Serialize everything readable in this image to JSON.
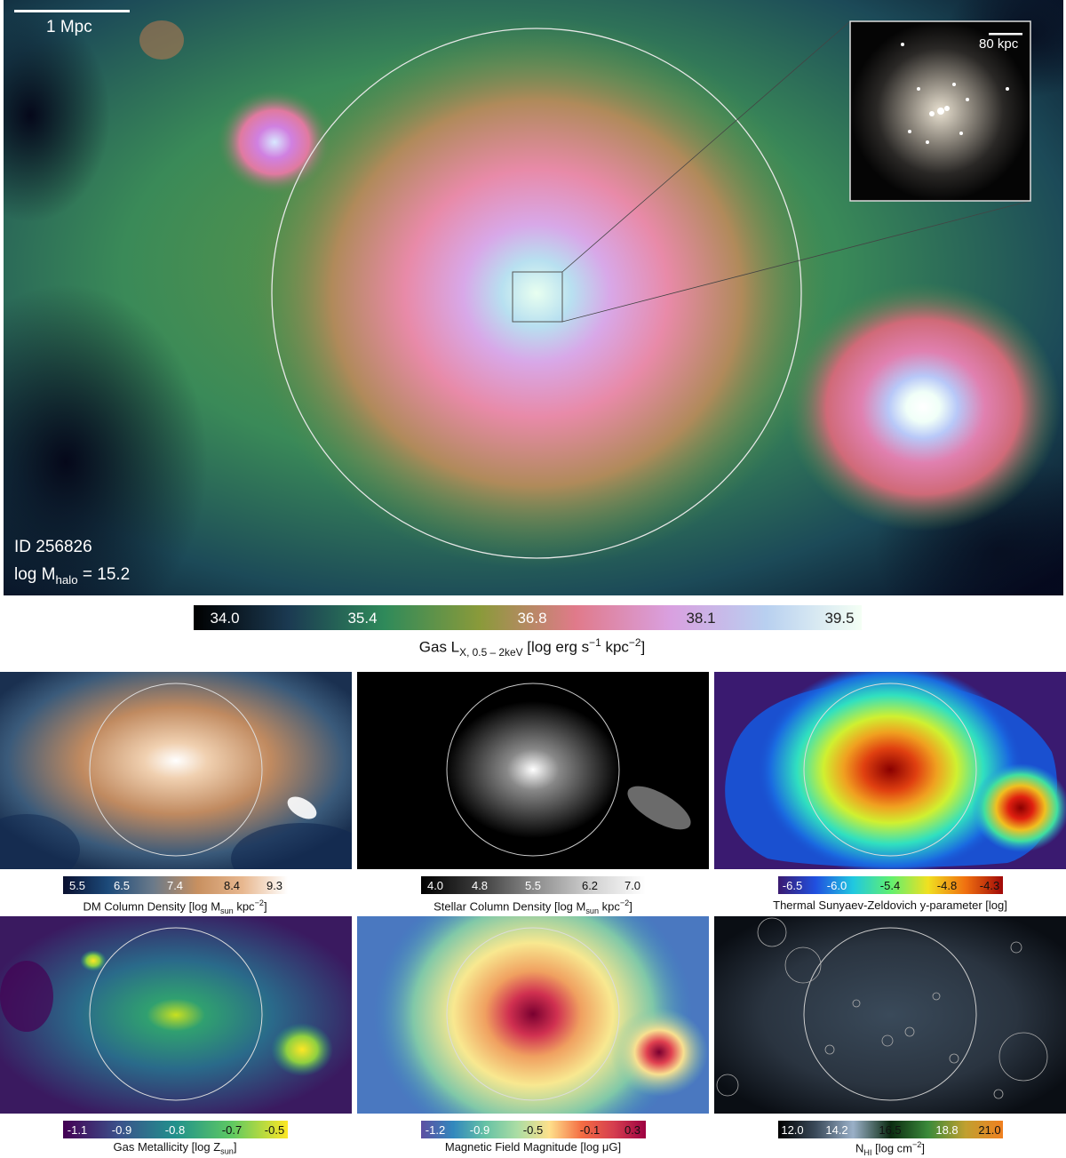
{
  "main_panel": {
    "scale_label": "1 Mpc",
    "inset_scale_label": "80 kpc",
    "id_label": "ID 256826",
    "mass_label_prefix": "log M",
    "mass_label_sub": "halo",
    "mass_label_suffix": " = 15.2"
  },
  "main_colorbar": {
    "ticks": [
      "34.0",
      "35.4",
      "36.8",
      "38.1",
      "39.5"
    ],
    "title_prefix": "Gas L",
    "title_sub": "X, 0.5 – 2keV",
    "title_mid": " [log erg s",
    "title_sup1": "−1",
    "title_mid2": " kpc",
    "title_sup2": "−2",
    "title_end": "]",
    "colors": [
      "#000000",
      "#1b3a52",
      "#2f8a5a",
      "#8a9a3a",
      "#e07a8a",
      "#d9a0e0",
      "#b8d0f0",
      "#f4fff4"
    ]
  },
  "small_panels": [
    {
      "name": "dm",
      "ticks": [
        "5.5",
        "6.5",
        "7.4",
        "8.4",
        "9.3"
      ],
      "title_prefix": "DM Column Density [log M",
      "title_sub": "sun",
      "title_mid": " kpc",
      "title_sup": "−2",
      "title_end": "]",
      "colors": [
        "#0a1030",
        "#1c4a7a",
        "#6a7a8a",
        "#c89060",
        "#e8b890",
        "#ffffff"
      ]
    },
    {
      "name": "stellar",
      "ticks": [
        "4.0",
        "4.8",
        "5.5",
        "6.2",
        "7.0"
      ],
      "title_prefix": "Stellar Column Density [log M",
      "title_sub": "sun",
      "title_mid": " kpc",
      "title_sup": "−2",
      "title_end": "]",
      "colors": [
        "#000000",
        "#3a3a3a",
        "#8a8a8a",
        "#cfcfcf",
        "#ffffff"
      ]
    },
    {
      "name": "tsz",
      "ticks": [
        "-6.5",
        "-6.0",
        "-5.4",
        "-4.8",
        "-4.3"
      ],
      "title_prefix": "Thermal Sunyaev-Zeldovich y-parameter [log]",
      "title_sub": "",
      "title_mid": "",
      "title_sup": "",
      "title_end": "",
      "colors": [
        "#3a1a70",
        "#2050e0",
        "#20c8e0",
        "#60f070",
        "#f0e020",
        "#f07010",
        "#a00808"
      ]
    },
    {
      "name": "metallicity",
      "ticks": [
        "-1.1",
        "-0.9",
        "-0.8",
        "-0.7",
        "-0.5"
      ],
      "title_prefix": "Gas Metallicity [log Z",
      "title_sub": "sun",
      "title_mid": "]",
      "title_sup": "",
      "title_end": "",
      "colors": [
        "#440154",
        "#3b528b",
        "#21918c",
        "#5ec962",
        "#fde725"
      ]
    },
    {
      "name": "magnetic",
      "ticks": [
        "-1.2",
        "-0.9",
        "-0.5",
        "-0.1",
        "0.3"
      ],
      "title_prefix": "Magnetic Field Magnitude [log μG]",
      "title_sub": "",
      "title_mid": "",
      "title_sup": "",
      "title_end": "",
      "colors": [
        "#5e4fa2",
        "#3288bd",
        "#66c2a5",
        "#abdda4",
        "#fee08b",
        "#f46d43",
        "#d53e4f",
        "#9e0142"
      ]
    },
    {
      "name": "hi",
      "ticks": [
        "12.0",
        "14.2",
        "16.5",
        "18.8",
        "21.0"
      ],
      "title_prefix": "N",
      "title_sub": "HI",
      "title_mid": " [log cm",
      "title_sup": "−2",
      "title_end": "]",
      "colors": [
        "#000000",
        "#3a4a5a",
        "#9ab0c8",
        "#0a2a10",
        "#3a8a3a",
        "#c0a030",
        "#f08020"
      ]
    }
  ]
}
